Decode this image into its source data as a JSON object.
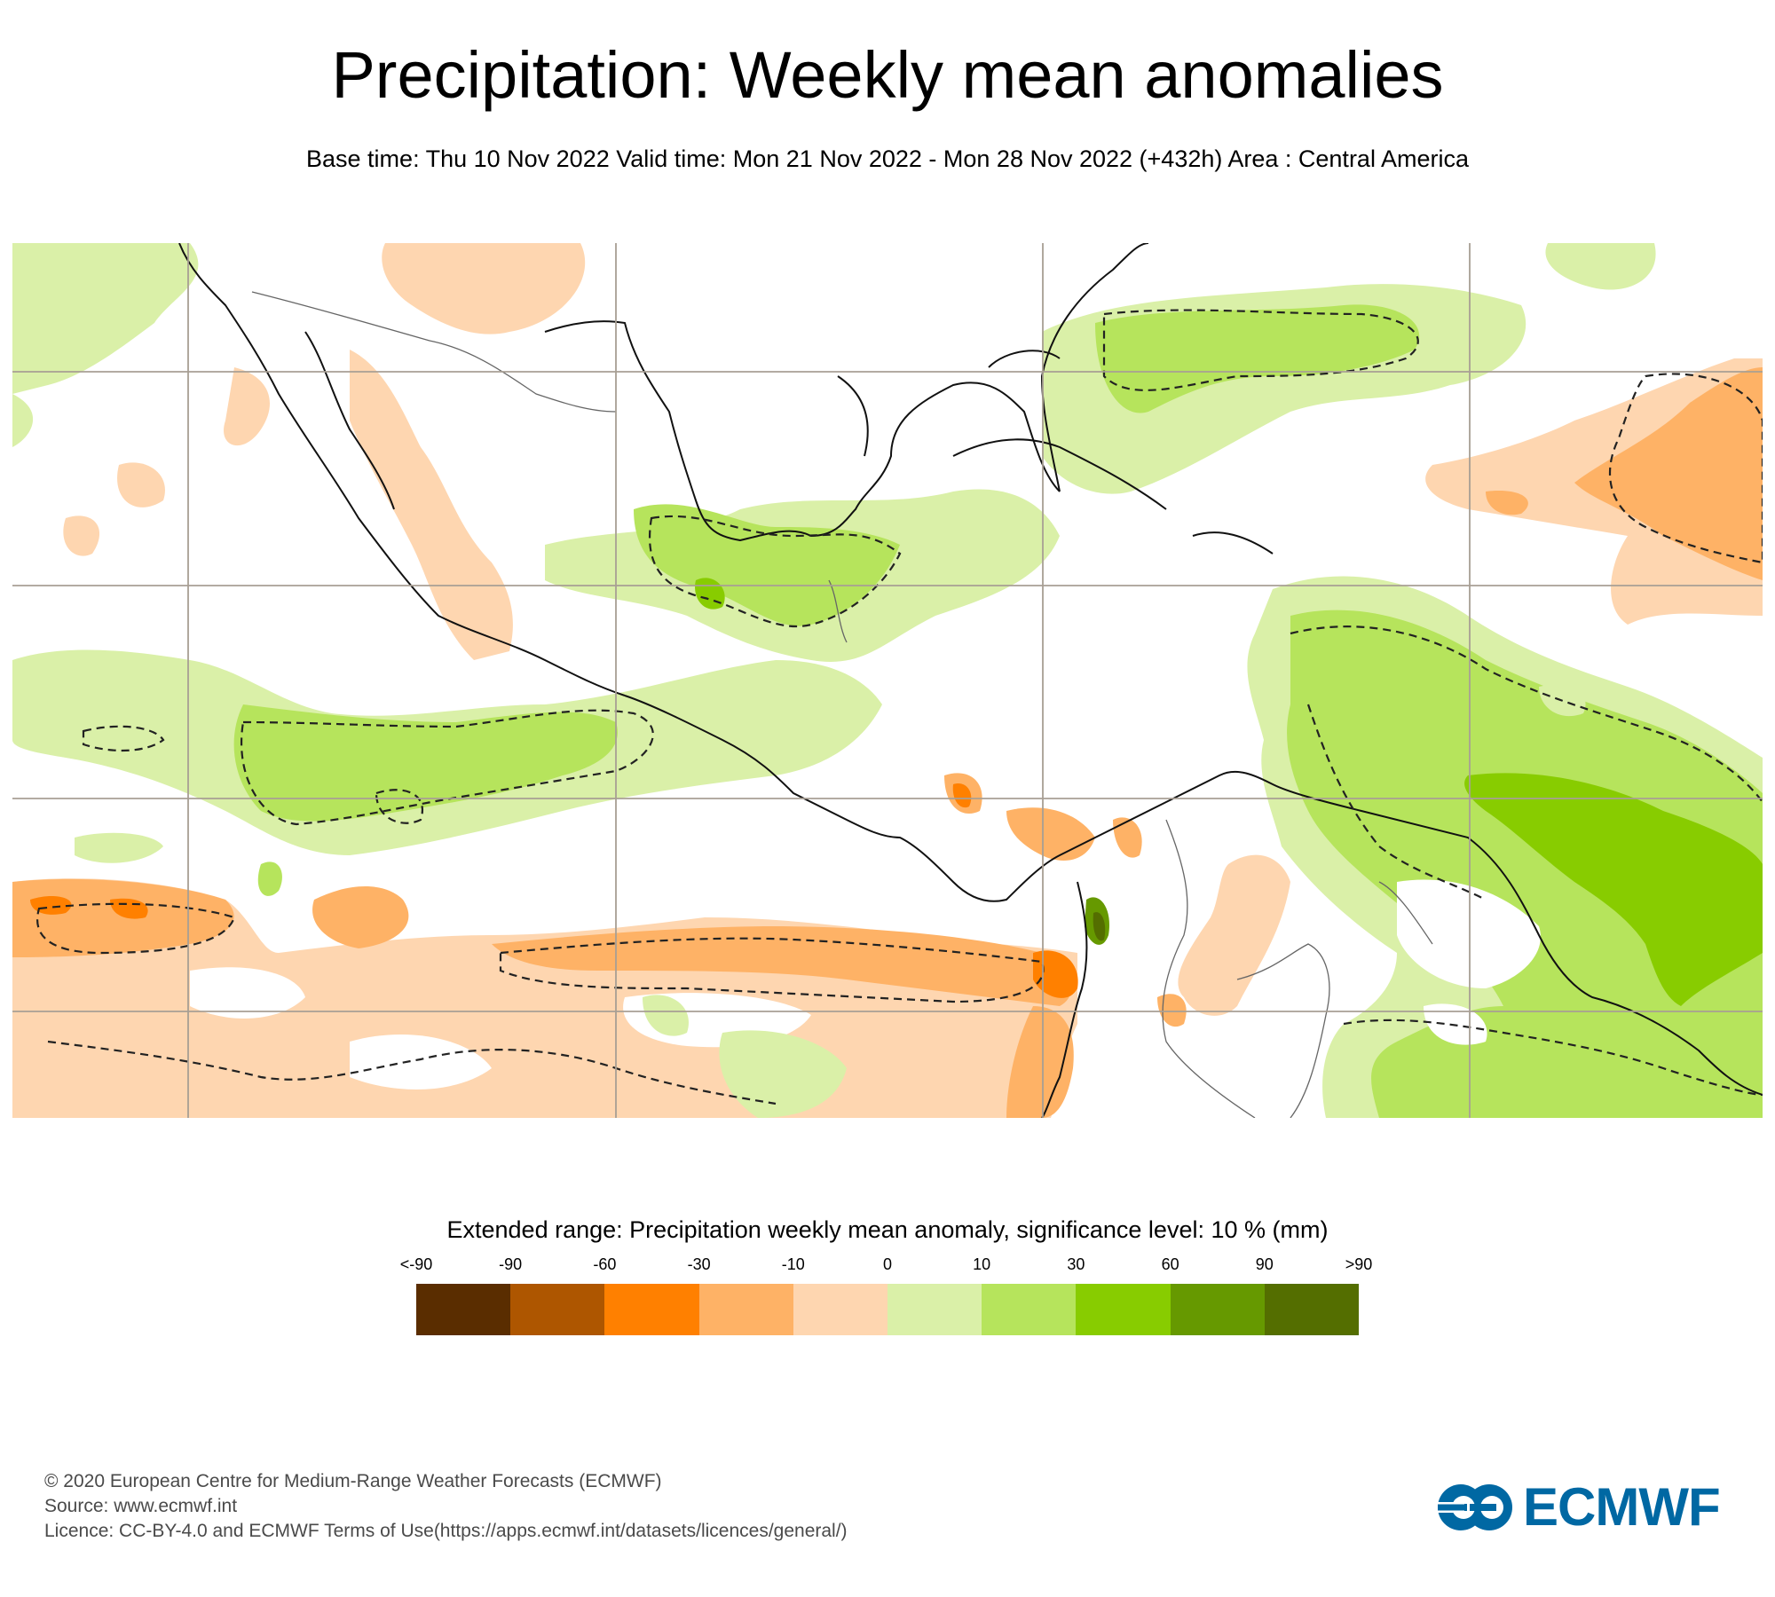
{
  "header": {
    "title": "Precipitation: Weekly mean anomalies",
    "subtitle": "Base time: Thu 10 Nov 2022 Valid time: Mon 21 Nov 2022 - Mon 28 Nov 2022 (+432h) Area : Central America"
  },
  "map": {
    "area": "Central America",
    "parameter": "Precipitation weekly mean anomaly",
    "units": "mm",
    "significance_level_percent": 10,
    "contour_style": "dashed line = significant at 10% level",
    "colors": {
      "gridline": "#a89f94",
      "coastline": "#111111",
      "border": "#666666",
      "ocean_land_background": "#ffffff"
    }
  },
  "legend": {
    "title": "Extended range: Precipitation weekly mean anomaly, significance level: 10 % (mm)",
    "tick_labels": [
      "<-90",
      "-90",
      "-60",
      "-30",
      "-10",
      "0",
      "10",
      "30",
      "60",
      "90",
      ">90"
    ],
    "swatches": [
      {
        "range": "< -90",
        "color": "#5a2d00"
      },
      {
        "range": "-90 to -60",
        "color": "#ae5600"
      },
      {
        "range": "-60 to -30",
        "color": "#ff8000"
      },
      {
        "range": "-30 to -10",
        "color": "#feb266"
      },
      {
        "range": "-10 to 0",
        "color": "#fed6b0"
      },
      {
        "range": "0 to 10",
        "color": "#daf0a8"
      },
      {
        "range": "10 to 30",
        "color": "#b6e45c"
      },
      {
        "range": "30 to 60",
        "color": "#88cc00"
      },
      {
        "range": "60 to 90",
        "color": "#669900"
      },
      {
        "range": "> 90",
        "color": "#546e00"
      }
    ]
  },
  "footer": {
    "copyright": "© 2020 European Centre for Medium-Range Weather Forecasts (ECMWF)",
    "source": "Source: www.ecmwf.int",
    "licence": "Licence: CC-BY-4.0 and ECMWF Terms of Use(https://apps.ecmwf.int/datasets/licences/general/)"
  },
  "logo": {
    "text": "ECMWF",
    "color": "#0068a3"
  }
}
